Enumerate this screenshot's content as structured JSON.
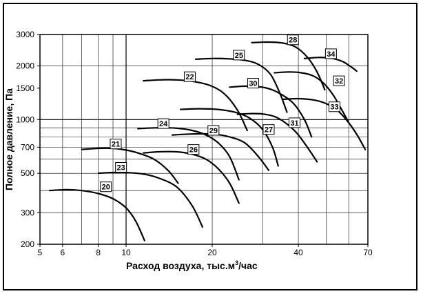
{
  "chart_data": {
    "type": "line",
    "xlabel": "Расход воздуха, тыс.м",
    "xlabel_sup": "3",
    "xlabel_tail": "/час",
    "ylabel": "Полное давление, Па",
    "x_scale": "log",
    "y_scale": "log",
    "xlim": [
      5,
      70
    ],
    "ylim": [
      200,
      3000
    ],
    "x_ticks": [
      5,
      6,
      8,
      10,
      20,
      40,
      70
    ],
    "y_ticks": [
      200,
      300,
      500,
      700,
      1000,
      1500,
      2000,
      3000
    ],
    "grid": true,
    "series": [
      {
        "name": "20",
        "x": [
          5.4,
          6.2,
          7.0,
          8.0,
          9.0,
          10.0,
          10.8,
          11.6
        ],
        "y": [
          400,
          405,
          400,
          385,
          360,
          320,
          270,
          210
        ]
      },
      {
        "name": "21",
        "x": [
          7.0,
          8.0,
          9.0,
          10.0,
          11.0,
          12.5,
          14.0,
          15.2
        ],
        "y": [
          680,
          690,
          690,
          675,
          650,
          600,
          520,
          440
        ]
      },
      {
        "name": "23",
        "x": [
          8.0,
          9.0,
          10.0,
          11.5,
          13.0,
          15.0,
          17.0,
          18.5
        ],
        "y": [
          500,
          505,
          505,
          495,
          470,
          420,
          330,
          250
        ]
      },
      {
        "name": "24",
        "x": [
          11.0,
          13.0,
          15.0,
          17.0,
          19.0,
          21.0,
          23.0,
          24.8
        ],
        "y": [
          890,
          900,
          895,
          870,
          820,
          740,
          620,
          460
        ]
      },
      {
        "name": "26",
        "x": [
          11.5,
          13.0,
          15.0,
          17.0,
          19.0,
          21.0,
          23.0,
          24.8
        ],
        "y": [
          650,
          660,
          660,
          640,
          600,
          530,
          440,
          340
        ]
      },
      {
        "name": "22",
        "x": [
          11.5,
          13.0,
          15.0,
          17.0,
          19.5,
          22.0,
          24.5,
          26.5
        ],
        "y": [
          1650,
          1670,
          1670,
          1640,
          1560,
          1400,
          1130,
          870
        ]
      },
      {
        "name": "29",
        "x": [
          14.5,
          17.0,
          20.0,
          23.0,
          26.0,
          29.0,
          31.5
        ],
        "y": [
          820,
          830,
          830,
          800,
          740,
          620,
          520
        ]
      },
      {
        "name": "27",
        "x": [
          15.5,
          18.0,
          21.0,
          24.0,
          27.0,
          30.0,
          32.5,
          34.0
        ],
        "y": [
          1140,
          1150,
          1140,
          1100,
          1020,
          880,
          700,
          550
        ]
      },
      {
        "name": "25",
        "x": [
          17.5,
          20.0,
          23.0,
          26.0,
          29.0,
          32.0,
          34.5,
          36.5
        ],
        "y": [
          2180,
          2200,
          2190,
          2150,
          2040,
          1790,
          1400,
          1100
        ]
      },
      {
        "name": "30",
        "x": [
          23.0,
          26.0,
          29.0,
          32.0,
          35.0,
          38.5,
          42.0,
          44.5
        ],
        "y": [
          1520,
          1540,
          1530,
          1480,
          1380,
          1230,
          1000,
          800
        ]
      },
      {
        "name": "31",
        "x": [
          24.5,
          27.0,
          30.0,
          33.0,
          36.0,
          39.5,
          43.0,
          46.5
        ],
        "y": [
          1070,
          1080,
          1075,
          1040,
          960,
          840,
          700,
          580
        ]
      },
      {
        "name": "28",
        "x": [
          27.5,
          31.0,
          35.0,
          39.0,
          43.0,
          46.5,
          49.5
        ],
        "y": [
          2700,
          2720,
          2690,
          2560,
          2240,
          1850,
          1470
        ]
      },
      {
        "name": "32",
        "x": [
          33.0,
          37.0,
          41.0,
          45.0,
          49.0,
          53.0,
          57.0,
          60.0
        ],
        "y": [
          1830,
          1850,
          1830,
          1760,
          1600,
          1370,
          1120,
          960
        ]
      },
      {
        "name": "33",
        "x": [
          35.5,
          40.0,
          45.0,
          50.0,
          55.0,
          60.0,
          64.5,
          68.5
        ],
        "y": [
          1300,
          1310,
          1290,
          1230,
          1120,
          960,
          810,
          680
        ]
      },
      {
        "name": "34",
        "x": [
          42.0,
          47.0,
          52.0,
          57.0,
          61.0,
          64.0
        ],
        "y": [
          2200,
          2230,
          2210,
          2120,
          1980,
          1870
        ]
      }
    ],
    "curve_labels": [
      {
        "text": "20",
        "x": 8.5,
        "y": 420
      },
      {
        "text": "21",
        "x": 9.2,
        "y": 730
      },
      {
        "text": "23",
        "x": 9.6,
        "y": 540
      },
      {
        "text": "24",
        "x": 13.5,
        "y": 950
      },
      {
        "text": "26",
        "x": 17.2,
        "y": 680
      },
      {
        "text": "22",
        "x": 16.7,
        "y": 1740
      },
      {
        "text": "29",
        "x": 20.2,
        "y": 870
      },
      {
        "text": "27",
        "x": 31.5,
        "y": 880
      },
      {
        "text": "25",
        "x": 24.8,
        "y": 2300
      },
      {
        "text": "30",
        "x": 27.8,
        "y": 1600
      },
      {
        "text": "31",
        "x": 38.8,
        "y": 960
      },
      {
        "text": "28",
        "x": 38.3,
        "y": 2800
      },
      {
        "text": "32",
        "x": 55.5,
        "y": 1650
      },
      {
        "text": "33",
        "x": 53.5,
        "y": 1180
      },
      {
        "text": "34",
        "x": 52.0,
        "y": 2340
      }
    ]
  }
}
